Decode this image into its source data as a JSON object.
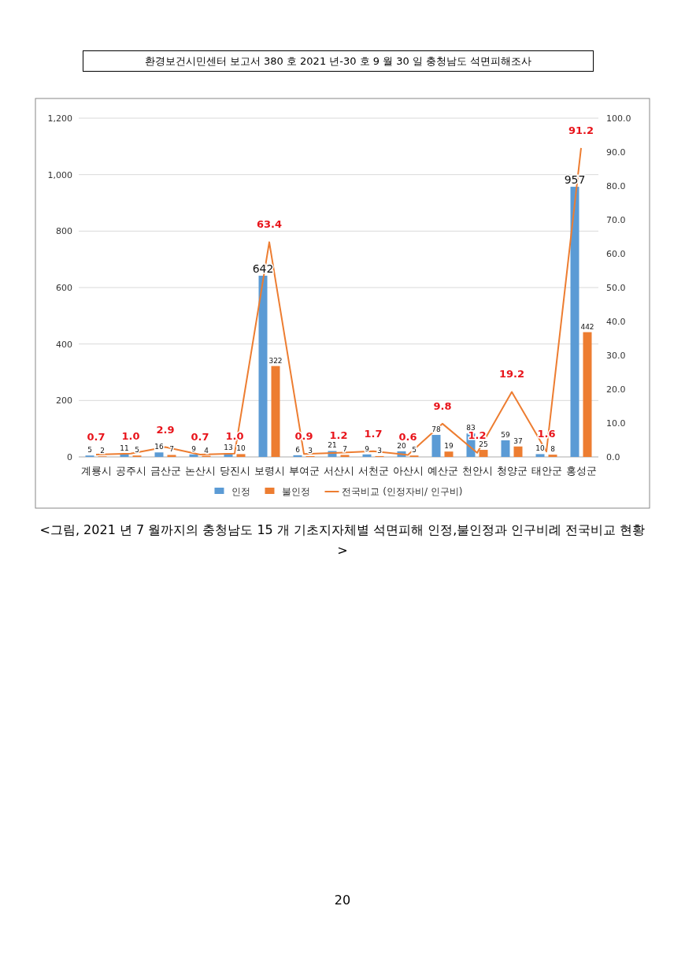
{
  "chart_data": {
    "type": "bar",
    "categories": [
      "계룡시",
      "공주시",
      "금산군",
      "논산시",
      "당진시",
      "보령시",
      "부여군",
      "서산시",
      "서천군",
      "아산시",
      "예산군",
      "천안시",
      "청양군",
      "태안군",
      "홍성군"
    ],
    "series": [
      {
        "name": "인정",
        "color": "#5b9bd5",
        "values": [
          5,
          11,
          16,
          9,
          13,
          642,
          6,
          21,
          9,
          20,
          78,
          83,
          59,
          10,
          957
        ]
      },
      {
        "name": "불인정",
        "color": "#ed7d31",
        "values": [
          2,
          5,
          7,
          4,
          10,
          322,
          3,
          7,
          3,
          5,
          19,
          25,
          37,
          8,
          442
        ]
      },
      {
        "name": "전국비교 (인정자비/ 인구비)",
        "type": "line",
        "axis": "y2",
        "color": "#ed7d31",
        "values": [
          0.7,
          1.0,
          2.9,
          0.7,
          1.0,
          63.4,
          0.9,
          1.2,
          1.7,
          0.6,
          9.8,
          1.2,
          19.2,
          1.6,
          91.2
        ],
        "value_labels": [
          "0.7",
          "1.0",
          "2.9",
          "0.7",
          "1.0",
          "63.4",
          "0.9",
          "1.2",
          "1.7",
          "0.6",
          "9.8",
          "1.2",
          "19.2",
          "1.6",
          "91.2"
        ]
      }
    ],
    "ylim": [
      0,
      1200
    ],
    "yticks": [
      {
        "value": 0,
        "label": "0"
      },
      {
        "value": 200,
        "label": "200"
      },
      {
        "value": 400,
        "label": "400"
      },
      {
        "value": 600,
        "label": "600"
      },
      {
        "value": 800,
        "label": "800"
      },
      {
        "value": 1000,
        "label": "1,000"
      },
      {
        "value": 1200,
        "label": "1,200"
      }
    ],
    "y2lim": [
      0,
      100
    ],
    "y2ticks": [
      {
        "value": 0,
        "label": "0.0"
      },
      {
        "value": 10,
        "label": "10.0"
      },
      {
        "value": 20,
        "label": "20.0"
      },
      {
        "value": 30,
        "label": "30.0"
      },
      {
        "value": 40,
        "label": "40.0"
      },
      {
        "value": 50,
        "label": "50.0"
      },
      {
        "value": 60,
        "label": "60.0"
      },
      {
        "value": 70,
        "label": "70.0"
      },
      {
        "value": 80,
        "label": "80.0"
      },
      {
        "value": 90,
        "label": "90.0"
      },
      {
        "value": 100,
        "label": "100.0"
      }
    ],
    "grid": "y",
    "legend": "bottom",
    "data_labels": true,
    "marker": "none",
    "annotations": [
      "환경보건시민센터 보고서 380 호 2021 년-30 호 9 월 30 일 충청남도 석면피해조사",
      "<그림, 2021 년 7 월까지의 충청남도 15 개 기초지자체별 석면피해 인정,불인정과 인구비례 전국비교 현황>",
      "20"
    ]
  }
}
